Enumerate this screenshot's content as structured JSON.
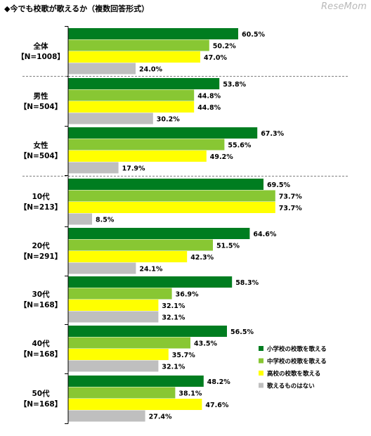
{
  "title": "◆今でも校歌が歌えるか（複数回答形式）",
  "brand": "ReseMom",
  "chart_data": {
    "type": "bar",
    "orientation": "horizontal",
    "title": "◆今でも校歌が歌えるか（複数回答形式）",
    "xlim": [
      0,
      100
    ],
    "grid": false,
    "legend_position": "bottom-right",
    "categories": [
      {
        "name": "全体",
        "n": "【N=1008】"
      },
      {
        "name": "男性",
        "n": "【N=504】"
      },
      {
        "name": "女性",
        "n": "【N=504】"
      },
      {
        "name": "10代",
        "n": "【N=213】"
      },
      {
        "name": "20代",
        "n": "【N=291】"
      },
      {
        "name": "30代",
        "n": "【N=168】"
      },
      {
        "name": "40代",
        "n": "【N=168】"
      },
      {
        "name": "50代",
        "n": "【N=168】"
      }
    ],
    "series": [
      {
        "name": "小学校の校歌を歌える",
        "color": "#007d20",
        "values": [
          60.5,
          53.8,
          67.3,
          69.5,
          64.6,
          58.3,
          56.5,
          48.2
        ]
      },
      {
        "name": "中学校の校歌を歌える",
        "color": "#88c733",
        "values": [
          50.2,
          44.8,
          55.6,
          73.7,
          51.5,
          36.9,
          43.5,
          38.1
        ]
      },
      {
        "name": "高校の校歌を歌える",
        "color": "#ffff00",
        "values": [
          47.0,
          44.8,
          49.2,
          73.7,
          42.3,
          32.1,
          35.7,
          47.6
        ]
      },
      {
        "name": "歌えるものはない",
        "color": "#bfbfbf",
        "values": [
          24.0,
          30.2,
          17.9,
          8.5,
          24.1,
          32.1,
          32.1,
          27.4
        ]
      }
    ],
    "value_suffix": "%"
  }
}
